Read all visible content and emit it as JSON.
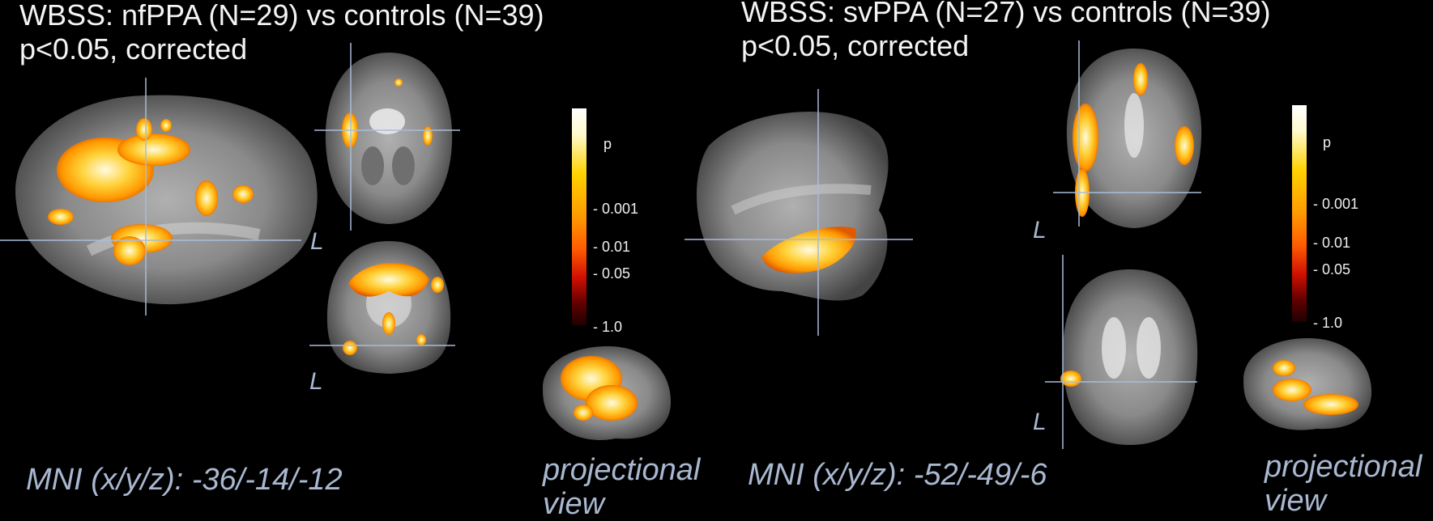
{
  "left_panel": {
    "title_line1": "WBSS: nfPPA (N=29) vs controls (N=39)",
    "title_line2": "p<0.05, corrected",
    "mni": "MNI (x/y/z): -36/-14/-12",
    "orientation_label": "L",
    "projection_line1": "projectional",
    "projection_line2": "view"
  },
  "right_panel": {
    "title_line1": "WBSS: svPPA (N=27) vs controls (N=39)",
    "title_line2": "p<0.05, corrected",
    "mni": "MNI (x/y/z): -52/-49/-6",
    "orientation_label": "L",
    "projection_line1": "projectional",
    "projection_line2": "view"
  },
  "colorbar": {
    "symbol": "p",
    "ticks": [
      "0.001",
      "0.01",
      "0.05",
      "1.0"
    ]
  },
  "colors": {
    "background": "#000000",
    "brain_gray": "#8a8a8a",
    "crosshair": "#a9bcd8",
    "activation_hot": "#fff8d0",
    "activation_mid": "#ffb000",
    "activation_low": "#e05000"
  }
}
